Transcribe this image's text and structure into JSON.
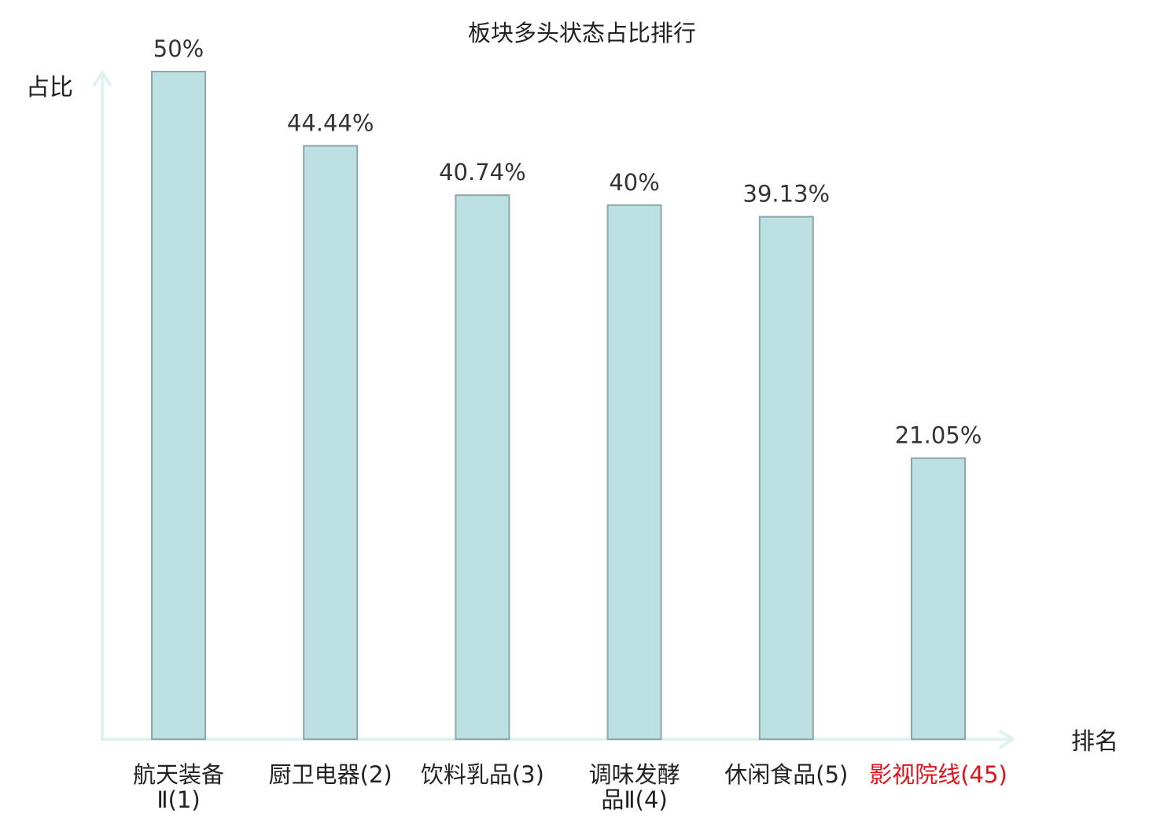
{
  "chart_data": {
    "type": "bar",
    "title": "板块多头状态占比排行",
    "ylabel": "占比",
    "xlabel": "排名",
    "ylim": [
      0,
      50
    ],
    "grid": false,
    "categories": [
      {
        "name_lines": [
          "航天装备",
          "Ⅱ(1)"
        ],
        "highlight": false
      },
      {
        "name_lines": [
          "厨卫电器(2)"
        ],
        "highlight": false
      },
      {
        "name_lines": [
          "饮料乳品(3)"
        ],
        "highlight": false
      },
      {
        "name_lines": [
          "调味发酵",
          "品Ⅱ(4)"
        ],
        "highlight": false
      },
      {
        "name_lines": [
          "休闲食品(5)"
        ],
        "highlight": false
      },
      {
        "name_lines": [
          "影视院线(45)"
        ],
        "highlight": true
      }
    ],
    "values": [
      50,
      44.44,
      40.74,
      40,
      39.13,
      21.05
    ],
    "value_labels": [
      "50%",
      "44.44%",
      "40.74%",
      "40%",
      "39.13%",
      "21.05%"
    ]
  },
  "colors": {
    "bar_fill": "#bde0e3",
    "bar_stroke": "#8aa8ab",
    "axis": "#dff2ef",
    "text": "#333333",
    "highlight_text": "#e0121b",
    "background": "#ffffff"
  }
}
